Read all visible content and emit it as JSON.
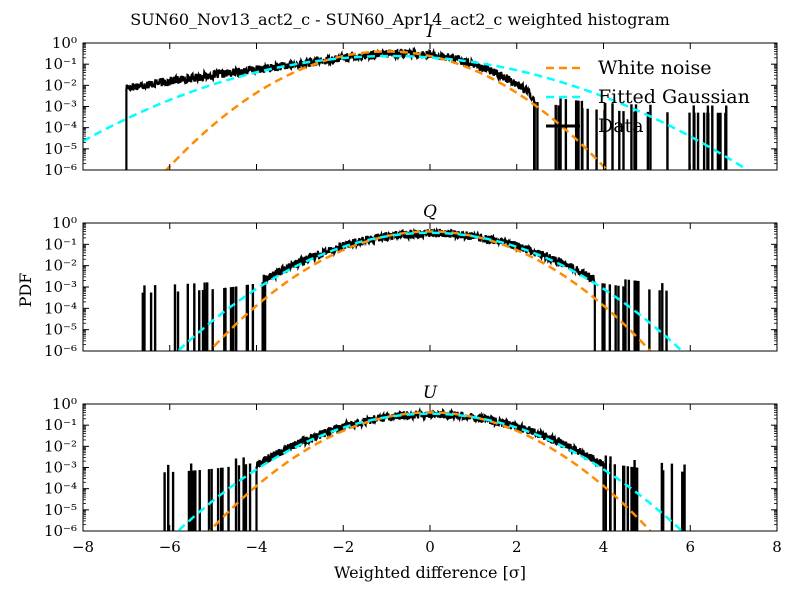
{
  "figure": {
    "title": "SUN60_Nov13_act2_c - SUN60_Apr14_act2_c weighted histogram",
    "xlabel": "Weighted difference [σ]",
    "ylabel": "PDF",
    "x_ticks": [
      "−8",
      "−6",
      "−4",
      "−2",
      "0",
      "2",
      "4",
      "6",
      "8"
    ],
    "y_ticks": [
      "10⁰",
      "10⁻¹",
      "10⁻²",
      "10⁻³",
      "10⁻⁴",
      "10⁻⁵",
      "10⁻⁶"
    ],
    "legend": {
      "white_noise": "White noise",
      "fitted": "Fitted Gaussian",
      "data": "Data"
    },
    "colors": {
      "white_noise": "#ff8c00",
      "fitted": "#00ffff",
      "data": "#000000"
    }
  },
  "chart_data": [
    {
      "type": "line",
      "panel_title": "I",
      "xlim": [
        -8,
        8
      ],
      "ylim": [
        1e-06,
        1
      ],
      "log_y": true,
      "legend_placement": "top-right",
      "series": [
        {
          "name": "White noise",
          "style": "dashed",
          "color": "#ff8c00",
          "gaussian": {
            "mu": -1.0,
            "sigma": 1.0
          }
        },
        {
          "name": "Fitted Gaussian",
          "style": "dashed",
          "color": "#00ffff",
          "gaussian": {
            "mu": -0.9,
            "sigma": 1.65
          }
        },
        {
          "name": "Data",
          "style": "solid",
          "color": "#000000",
          "profile": {
            "x": [
              -7.0,
              -6.5,
              -6.0,
              -5.0,
              -4.0,
              -3.0,
              -2.0,
              -1.0,
              -0.5,
              0.0,
              0.5,
              1.0,
              1.5,
              2.0,
              2.3,
              2.5,
              3.0,
              3.5,
              4.0,
              5.0,
              6.0,
              6.9
            ],
            "y": [
              0.008,
              0.011,
              0.016,
              0.03,
              0.055,
              0.1,
              0.2,
              0.3,
              0.32,
              0.28,
              0.2,
              0.1,
              0.04,
              0.012,
              0.004,
              0.001,
              5e-05,
              5e-05,
              5e-05,
              5e-05,
              5e-05,
              5e-05
            ]
          },
          "core_range": [
            -7.0,
            2.4
          ],
          "outlier_range": [
            2.4,
            6.9
          ]
        }
      ]
    },
    {
      "type": "line",
      "panel_title": "Q",
      "xlim": [
        -8,
        8
      ],
      "ylim": [
        1e-06,
        1
      ],
      "log_y": true,
      "series": [
        {
          "name": "White noise",
          "style": "dashed",
          "color": "#ff8c00",
          "gaussian": {
            "mu": 0.0,
            "sigma": 1.0
          }
        },
        {
          "name": "Fitted Gaussian",
          "style": "dashed",
          "color": "#00ffff",
          "gaussian": {
            "mu": 0.0,
            "sigma": 1.15
          }
        },
        {
          "name": "Data",
          "style": "solid",
          "color": "#000000",
          "gaussian": {
            "mu": 0.0,
            "sigma": 1.2
          },
          "core_range": [
            -3.8,
            3.8
          ],
          "outlier_ranges": [
            [
              -6.7,
              -3.8
            ],
            [
              3.8,
              5.5
            ]
          ]
        }
      ]
    },
    {
      "type": "line",
      "panel_title": "U",
      "xlim": [
        -8,
        8
      ],
      "ylim": [
        1e-06,
        1
      ],
      "log_y": true,
      "series": [
        {
          "name": "White noise",
          "style": "dashed",
          "color": "#ff8c00",
          "gaussian": {
            "mu": 0.0,
            "sigma": 1.0
          }
        },
        {
          "name": "Fitted Gaussian",
          "style": "dashed",
          "color": "#00ffff",
          "gaussian": {
            "mu": 0.0,
            "sigma": 1.15
          }
        },
        {
          "name": "Data",
          "style": "solid",
          "color": "#000000",
          "gaussian": {
            "mu": 0.0,
            "sigma": 1.2
          },
          "core_range": [
            -4.0,
            4.0
          ],
          "outlier_ranges": [
            [
              -6.2,
              -4.0
            ],
            [
              4.0,
              5.9
            ]
          ]
        }
      ]
    }
  ]
}
